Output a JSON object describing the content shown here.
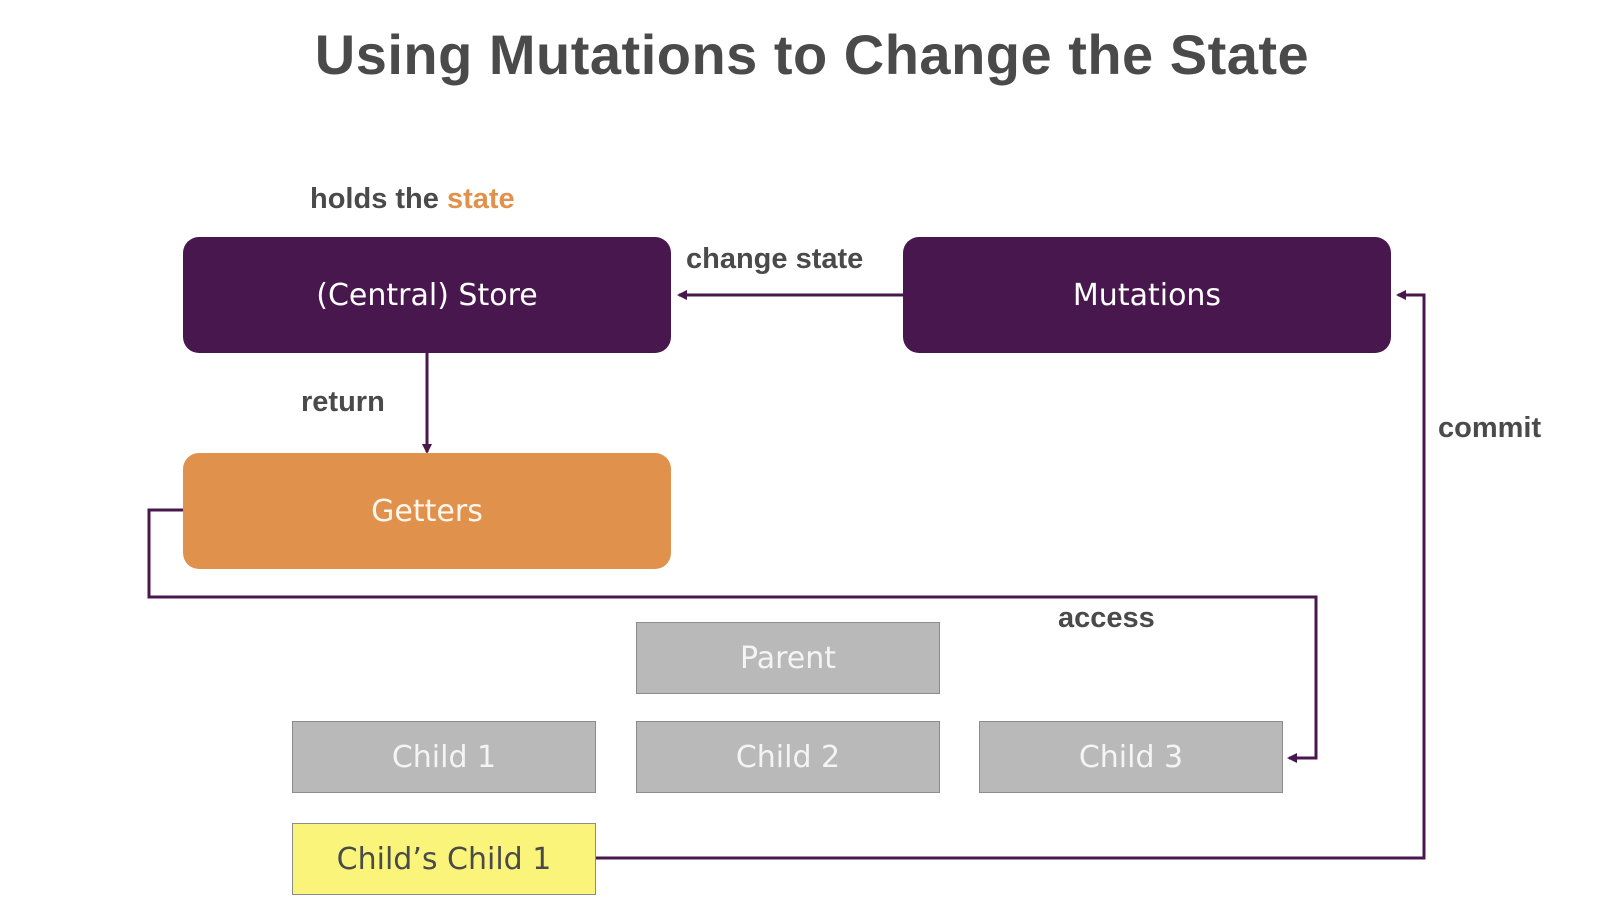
{
  "title": "Using Mutations to Change the State",
  "labels": {
    "holds_prefix": "holds the ",
    "holds_accent": "state",
    "change_state": "change state",
    "return": "return",
    "commit": "commit",
    "access": "access"
  },
  "nodes": {
    "store": "(Central) Store",
    "mutations": "Mutations",
    "getters": "Getters",
    "parent": "Parent",
    "child1": "Child 1",
    "child2": "Child 2",
    "child3": "Child 3",
    "childs_child1": "Child’s Child 1"
  },
  "colors": {
    "store_fill": "#48174d",
    "getters_fill": "#e0924c",
    "component_fill": "#b9b9b9",
    "highlight_fill": "#faf57a",
    "connector": "#48174d"
  }
}
